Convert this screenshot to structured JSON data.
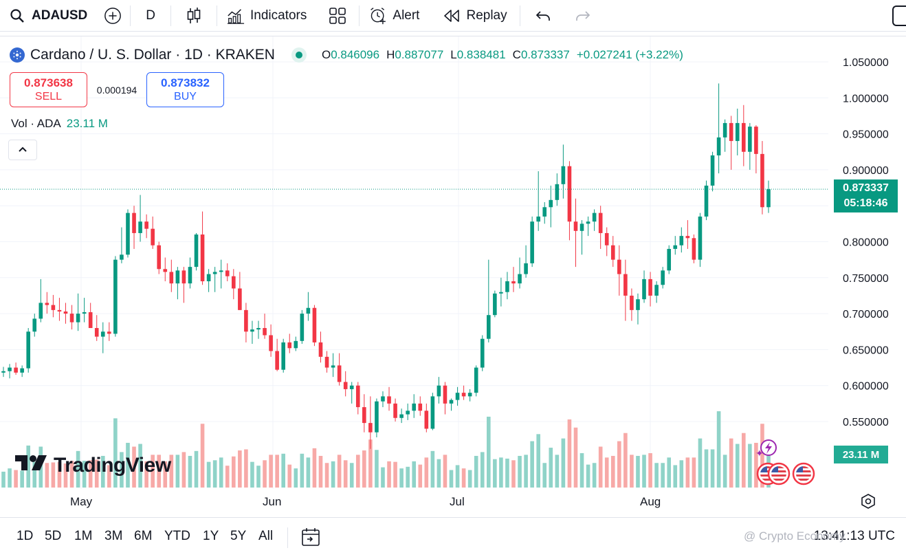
{
  "toolbar": {
    "symbol": "ADAUSD",
    "interval": "D",
    "indicators_label": "Indicators",
    "alert_label": "Alert",
    "replay_label": "Replay"
  },
  "legend": {
    "title": "Cardano / U. S. Dollar · 1D · KRAKEN",
    "open_key": "O",
    "open": "0.846096",
    "high_key": "H",
    "high": "0.887077",
    "low_key": "L",
    "low": "0.838481",
    "close_key": "C",
    "close": "0.873337",
    "change": "+0.027241 (+3.22%)"
  },
  "trade": {
    "sell_price": "0.873638",
    "sell_label": "SELL",
    "spread": "0.000194",
    "buy_price": "0.873832",
    "buy_label": "BUY"
  },
  "volume_legend": {
    "label": "Vol · ADA",
    "value": "23.11 M"
  },
  "price_badge": {
    "price": "0.873337",
    "countdown": "05:18:46"
  },
  "volume_badge": "23.11 M",
  "logo_text": "TradingView",
  "bottom": {
    "ranges": [
      "1D",
      "5D",
      "1M",
      "3M",
      "6M",
      "YTD",
      "1Y",
      "5Y",
      "All"
    ],
    "clock": "13:41:13 UTC"
  },
  "watermark": "@ Crypto Economy",
  "colors": {
    "up": "#089981",
    "down": "#f23645",
    "vol_up": "#8fd3c8",
    "vol_down": "#f7a9a7"
  },
  "chart_data": {
    "type": "candlestick",
    "y_ticks": [
      "1.050000",
      "1.000000",
      "0.950000",
      "0.900000",
      "0.850000",
      "0.800000",
      "0.750000",
      "0.700000",
      "0.650000",
      "0.600000",
      "0.550000"
    ],
    "x_ticks": [
      "May",
      "Jun",
      "Jul",
      "Aug"
    ],
    "ylim": [
      0.48,
      1.06
    ],
    "candles": [
      [
        0.618,
        0.626,
        0.612,
        0.62
      ],
      [
        0.62,
        0.63,
        0.61,
        0.625
      ],
      [
        0.625,
        0.632,
        0.615,
        0.618
      ],
      [
        0.618,
        0.628,
        0.612,
        0.624
      ],
      [
        0.624,
        0.68,
        0.618,
        0.675
      ],
      [
        0.675,
        0.7,
        0.668,
        0.693
      ],
      [
        0.693,
        0.748,
        0.688,
        0.715
      ],
      [
        0.715,
        0.73,
        0.7,
        0.712
      ],
      [
        0.712,
        0.726,
        0.695,
        0.705
      ],
      [
        0.705,
        0.722,
        0.69,
        0.703
      ],
      [
        0.703,
        0.715,
        0.686,
        0.7
      ],
      [
        0.7,
        0.712,
        0.678,
        0.688
      ],
      [
        0.688,
        0.728,
        0.676,
        0.7
      ],
      [
        0.7,
        0.722,
        0.688,
        0.702
      ],
      [
        0.702,
        0.715,
        0.68,
        0.68
      ],
      [
        0.68,
        0.698,
        0.662,
        0.668
      ],
      [
        0.668,
        0.688,
        0.645,
        0.675
      ],
      [
        0.675,
        0.688,
        0.662,
        0.672
      ],
      [
        0.672,
        0.78,
        0.668,
        0.775
      ],
      [
        0.775,
        0.82,
        0.77,
        0.782
      ],
      [
        0.782,
        0.845,
        0.778,
        0.84
      ],
      [
        0.84,
        0.85,
        0.79,
        0.812
      ],
      [
        0.812,
        0.865,
        0.8,
        0.828
      ],
      [
        0.828,
        0.838,
        0.805,
        0.818
      ],
      [
        0.818,
        0.835,
        0.79,
        0.795
      ],
      [
        0.795,
        0.8,
        0.755,
        0.762
      ],
      [
        0.762,
        0.778,
        0.745,
        0.758
      ],
      [
        0.758,
        0.775,
        0.73,
        0.742
      ],
      [
        0.742,
        0.765,
        0.72,
        0.76
      ],
      [
        0.76,
        0.765,
        0.715,
        0.742
      ],
      [
        0.742,
        0.778,
        0.735,
        0.765
      ],
      [
        0.765,
        0.812,
        0.76,
        0.81
      ],
      [
        0.81,
        0.842,
        0.74,
        0.745
      ],
      [
        0.745,
        0.762,
        0.73,
        0.755
      ],
      [
        0.755,
        0.765,
        0.73,
        0.758
      ],
      [
        0.758,
        0.775,
        0.735,
        0.76
      ],
      [
        0.76,
        0.77,
        0.745,
        0.752
      ],
      [
        0.752,
        0.762,
        0.72,
        0.735
      ],
      [
        0.735,
        0.758,
        0.705,
        0.705
      ],
      [
        0.705,
        0.715,
        0.66,
        0.675
      ],
      [
        0.675,
        0.69,
        0.658,
        0.678
      ],
      [
        0.678,
        0.69,
        0.665,
        0.68
      ],
      [
        0.68,
        0.7,
        0.665,
        0.67
      ],
      [
        0.67,
        0.685,
        0.64,
        0.648
      ],
      [
        0.648,
        0.665,
        0.62,
        0.622
      ],
      [
        0.622,
        0.665,
        0.618,
        0.66
      ],
      [
        0.66,
        0.672,
        0.645,
        0.652
      ],
      [
        0.652,
        0.668,
        0.648,
        0.662
      ],
      [
        0.662,
        0.705,
        0.658,
        0.7
      ],
      [
        0.7,
        0.73,
        0.69,
        0.708
      ],
      [
        0.708,
        0.712,
        0.655,
        0.66
      ],
      [
        0.66,
        0.675,
        0.632,
        0.64
      ],
      [
        0.64,
        0.648,
        0.618,
        0.625
      ],
      [
        0.625,
        0.645,
        0.612,
        0.628
      ],
      [
        0.628,
        0.645,
        0.6,
        0.605
      ],
      [
        0.605,
        0.62,
        0.585,
        0.595
      ],
      [
        0.595,
        0.605,
        0.575,
        0.6
      ],
      [
        0.6,
        0.605,
        0.56,
        0.57
      ],
      [
        0.57,
        0.588,
        0.535,
        0.548
      ],
      [
        0.548,
        0.585,
        0.512,
        0.535
      ],
      [
        0.535,
        0.582,
        0.528,
        0.578
      ],
      [
        0.578,
        0.592,
        0.57,
        0.585
      ],
      [
        0.585,
        0.598,
        0.565,
        0.575
      ],
      [
        0.575,
        0.582,
        0.55,
        0.555
      ],
      [
        0.555,
        0.568,
        0.548,
        0.56
      ],
      [
        0.56,
        0.575,
        0.552,
        0.565
      ],
      [
        0.565,
        0.588,
        0.555,
        0.575
      ],
      [
        0.575,
        0.585,
        0.558,
        0.565
      ],
      [
        0.565,
        0.575,
        0.535,
        0.54
      ],
      [
        0.54,
        0.59,
        0.538,
        0.585
      ],
      [
        0.585,
        0.612,
        0.575,
        0.6
      ],
      [
        0.6,
        0.605,
        0.56,
        0.575
      ],
      [
        0.575,
        0.582,
        0.565,
        0.58
      ],
      [
        0.58,
        0.598,
        0.572,
        0.59
      ],
      [
        0.59,
        0.6,
        0.58,
        0.585
      ],
      [
        0.585,
        0.595,
        0.578,
        0.59
      ],
      [
        0.59,
        0.628,
        0.585,
        0.625
      ],
      [
        0.625,
        0.67,
        0.62,
        0.665
      ],
      [
        0.665,
        0.775,
        0.66,
        0.698
      ],
      [
        0.698,
        0.732,
        0.695,
        0.728
      ],
      [
        0.728,
        0.75,
        0.71,
        0.73
      ],
      [
        0.73,
        0.758,
        0.72,
        0.745
      ],
      [
        0.745,
        0.765,
        0.73,
        0.742
      ],
      [
        0.742,
        0.778,
        0.735,
        0.755
      ],
      [
        0.755,
        0.795,
        0.75,
        0.77
      ],
      [
        0.77,
        0.835,
        0.765,
        0.828
      ],
      [
        0.828,
        0.898,
        0.815,
        0.835
      ],
      [
        0.835,
        0.855,
        0.825,
        0.848
      ],
      [
        0.848,
        0.878,
        0.82,
        0.858
      ],
      [
        0.858,
        0.895,
        0.85,
        0.88
      ],
      [
        0.88,
        0.935,
        0.86,
        0.905
      ],
      [
        0.905,
        0.912,
        0.802,
        0.828
      ],
      [
        0.828,
        0.86,
        0.765,
        0.815
      ],
      [
        0.815,
        0.83,
        0.782,
        0.825
      ],
      [
        0.825,
        0.835,
        0.808,
        0.828
      ],
      [
        0.828,
        0.845,
        0.815,
        0.84
      ],
      [
        0.84,
        0.85,
        0.79,
        0.812
      ],
      [
        0.812,
        0.82,
        0.78,
        0.795
      ],
      [
        0.795,
        0.808,
        0.765,
        0.775
      ],
      [
        0.775,
        0.795,
        0.725,
        0.755
      ],
      [
        0.755,
        0.775,
        0.69,
        0.725
      ],
      [
        0.725,
        0.735,
        0.69,
        0.705
      ],
      [
        0.705,
        0.728,
        0.685,
        0.72
      ],
      [
        0.72,
        0.76,
        0.715,
        0.748
      ],
      [
        0.748,
        0.758,
        0.71,
        0.725
      ],
      [
        0.725,
        0.745,
        0.715,
        0.74
      ],
      [
        0.74,
        0.765,
        0.735,
        0.76
      ],
      [
        0.76,
        0.795,
        0.755,
        0.79
      ],
      [
        0.79,
        0.808,
        0.782,
        0.795
      ],
      [
        0.795,
        0.82,
        0.785,
        0.808
      ],
      [
        0.808,
        0.83,
        0.79,
        0.805
      ],
      [
        0.805,
        0.81,
        0.77,
        0.775
      ],
      [
        0.775,
        0.84,
        0.765,
        0.835
      ],
      [
        0.835,
        0.885,
        0.83,
        0.878
      ],
      [
        0.878,
        0.925,
        0.87,
        0.92
      ],
      [
        0.92,
        1.02,
        0.895,
        0.945
      ],
      [
        0.945,
        0.97,
        0.925,
        0.965
      ],
      [
        0.965,
        0.975,
        0.9,
        0.94
      ],
      [
        0.94,
        0.985,
        0.92,
        0.965
      ],
      [
        0.965,
        0.99,
        0.905,
        0.925
      ],
      [
        0.925,
        0.965,
        0.9,
        0.96
      ],
      [
        0.96,
        0.962,
        0.895,
        0.922
      ],
      [
        0.922,
        0.94,
        0.838,
        0.848
      ],
      [
        0.848,
        0.885,
        0.84,
        0.873
      ]
    ],
    "volume_peak": "23.11 M"
  }
}
